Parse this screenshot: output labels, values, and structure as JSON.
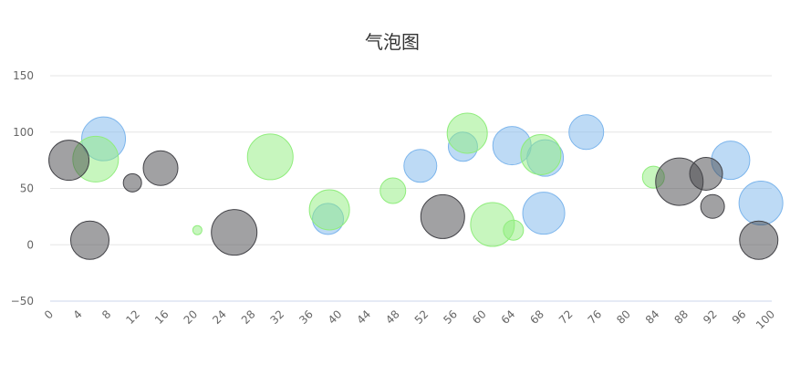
{
  "chart_data": {
    "type": "bubble",
    "title": "气泡图",
    "xlabel": "",
    "ylabel": "",
    "xlim": [
      0,
      100
    ],
    "ylim": [
      -50,
      150
    ],
    "x_ticks": [
      "0",
      "4",
      "8",
      "12",
      "16",
      "20",
      "24",
      "28",
      "32",
      "36",
      "40",
      "44",
      "48",
      "52",
      "56",
      "60",
      "64",
      "68",
      "72",
      "76",
      "80",
      "84",
      "88",
      "92",
      "96",
      "100"
    ],
    "y_ticks": [
      "150",
      "100",
      "50",
      "0",
      "−50"
    ],
    "y_tick_values": [
      150,
      100,
      50,
      0,
      -50
    ],
    "grid": true,
    "legend": "none",
    "series": [
      {
        "color": "#7cb5ec",
        "points": [
          {
            "x": 7.4,
            "y": 94,
            "z": 24
          },
          {
            "x": 38.5,
            "y": 23,
            "z": 17
          },
          {
            "x": 51.3,
            "y": 70,
            "z": 18
          },
          {
            "x": 57.2,
            "y": 87,
            "z": 16
          },
          {
            "x": 64,
            "y": 88,
            "z": 21
          },
          {
            "x": 68.4,
            "y": 28,
            "z": 23
          },
          {
            "x": 68.6,
            "y": 77,
            "z": 20
          },
          {
            "x": 74.3,
            "y": 100,
            "z": 19
          },
          {
            "x": 94.3,
            "y": 75,
            "z": 21
          },
          {
            "x": 98.5,
            "y": 37,
            "z": 24
          }
        ]
      },
      {
        "color": "#90ed7d",
        "points": [
          {
            "x": 6.3,
            "y": 76,
            "z": 25
          },
          {
            "x": 20.4,
            "y": 13,
            "z": 5
          },
          {
            "x": 30.5,
            "y": 78,
            "z": 25
          },
          {
            "x": 38.7,
            "y": 31,
            "z": 22
          },
          {
            "x": 47.5,
            "y": 48,
            "z": 14
          },
          {
            "x": 57.8,
            "y": 99,
            "z": 22
          },
          {
            "x": 61.3,
            "y": 18,
            "z": 24
          },
          {
            "x": 64.2,
            "y": 13,
            "z": 11
          },
          {
            "x": 68,
            "y": 80,
            "z": 22
          },
          {
            "x": 83.6,
            "y": 60,
            "z": 12
          }
        ]
      },
      {
        "color": "#434348",
        "points": [
          {
            "x": 2.6,
            "y": 75,
            "z": 22
          },
          {
            "x": 5.5,
            "y": 4,
            "z": 21
          },
          {
            "x": 11.4,
            "y": 55,
            "z": 10
          },
          {
            "x": 15.3,
            "y": 68,
            "z": 19
          },
          {
            "x": 25.5,
            "y": 11,
            "z": 25
          },
          {
            "x": 54.4,
            "y": 25,
            "z": 24
          },
          {
            "x": 87.2,
            "y": 56,
            "z": 26
          },
          {
            "x": 90.9,
            "y": 63,
            "z": 18
          },
          {
            "x": 91.8,
            "y": 34,
            "z": 13
          },
          {
            "x": 98.2,
            "y": 4,
            "z": 21
          }
        ]
      }
    ]
  }
}
